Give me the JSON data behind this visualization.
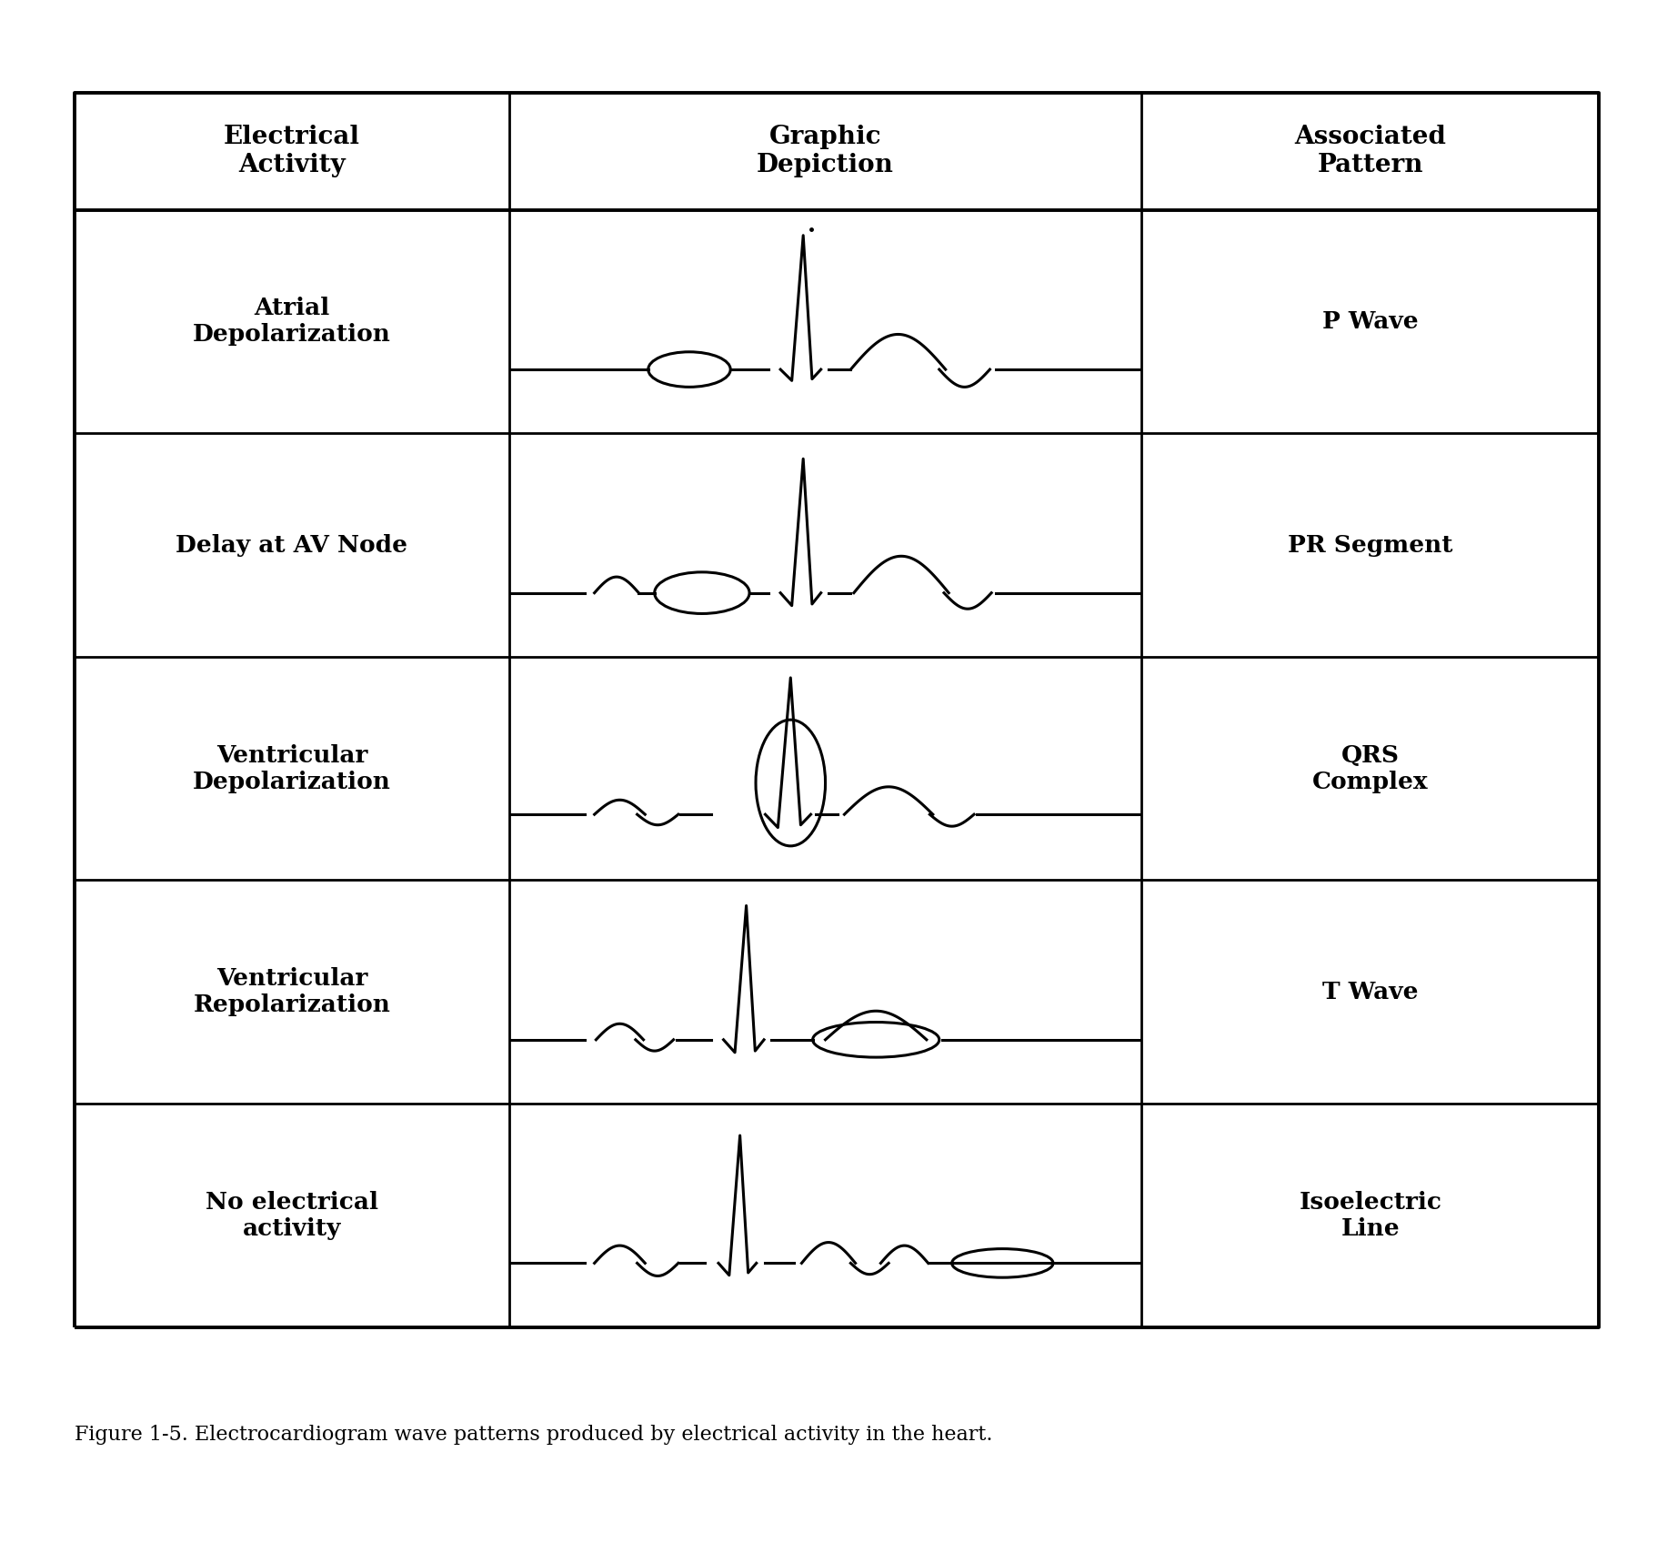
{
  "title": "Figure 1-5. Electrocardiogram wave patterns produced by electrical activity in the heart.",
  "col_headers": [
    "Electrical\nActivity",
    "Graphic\nDepiction",
    "Associated\nPattern"
  ],
  "rows": [
    {
      "activity": "Atrial\nDepolarization",
      "pattern": "P Wave"
    },
    {
      "activity": "Delay at AV Node",
      "pattern": "PR Segment"
    },
    {
      "activity": "Ventricular\nDepolarization",
      "pattern": "QRS\nComplex"
    },
    {
      "activity": "Ventricular\nRepolarization",
      "pattern": "T Wave"
    },
    {
      "activity": "No electrical\nactivity",
      "pattern": "Isoelectric\nLine"
    }
  ],
  "background_color": "#ffffff",
  "line_color": "#000000",
  "text_color": "#000000",
  "font_size_header": 20,
  "font_size_cell": 19,
  "font_size_caption": 16
}
